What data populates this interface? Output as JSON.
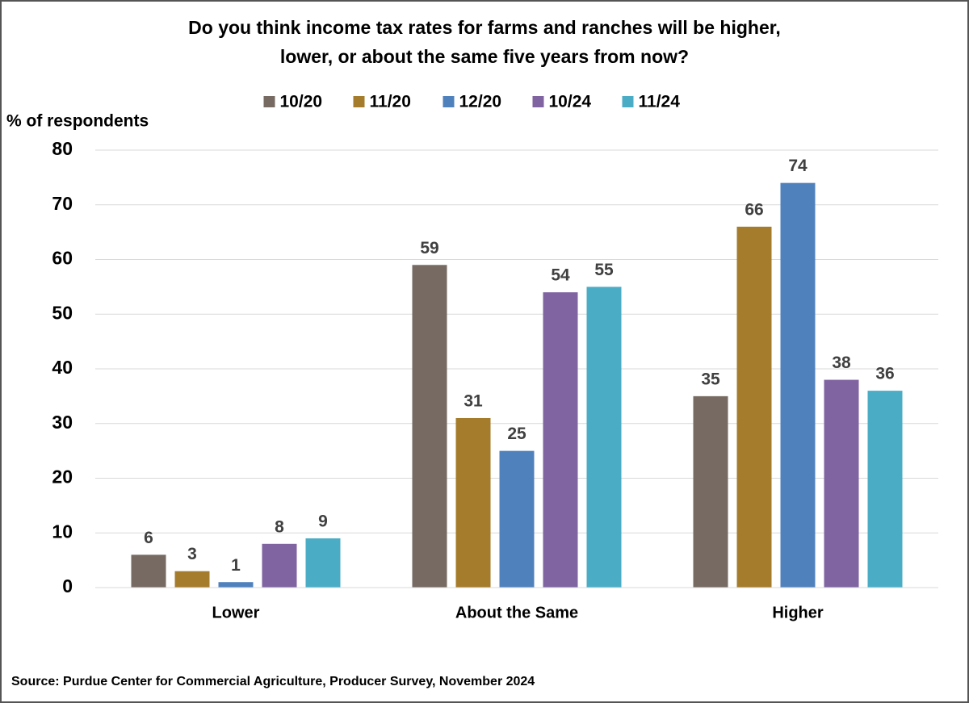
{
  "chart_data": {
    "type": "bar",
    "title": [
      "Do you think income tax rates for farms and ranches will be higher,",
      "lower, or about the same five years from now?"
    ],
    "y_label": "% of respondents",
    "categories": [
      "Lower",
      "About the Same",
      "Higher"
    ],
    "series": [
      {
        "name": "10/20",
        "color": "#766a62",
        "values": [
          6,
          59,
          35
        ]
      },
      {
        "name": "11/20",
        "color": "#a57c2c",
        "values": [
          3,
          31,
          66
        ]
      },
      {
        "name": "12/20",
        "color": "#4f81bd",
        "values": [
          1,
          25,
          74
        ]
      },
      {
        "name": "10/24",
        "color": "#8064a2",
        "values": [
          8,
          54,
          38
        ]
      },
      {
        "name": "11/24",
        "color": "#4bacc6",
        "values": [
          9,
          55,
          36
        ]
      }
    ],
    "ylim": [
      0,
      80
    ],
    "yticks": [
      0,
      10,
      20,
      30,
      40,
      50,
      60,
      70,
      80
    ],
    "grid": true,
    "legend": "top",
    "source": "Source: Purdue Center for Commercial Agriculture, Producer Survey, November 2024"
  }
}
